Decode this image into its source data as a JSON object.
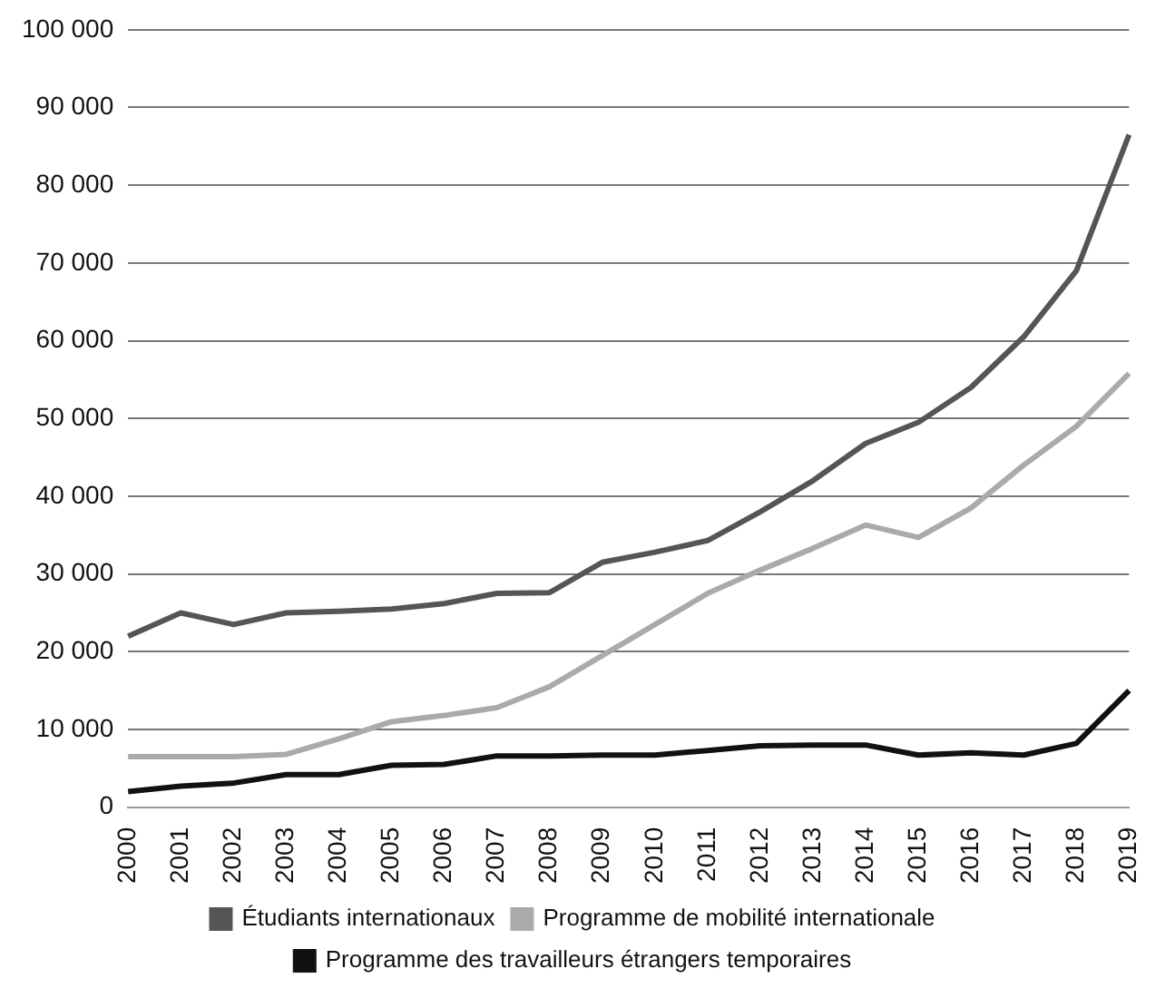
{
  "chart_data": {
    "type": "line",
    "categories": [
      "2000",
      "2001",
      "2002",
      "2003",
      "2004",
      "2005",
      "2006",
      "2007",
      "2008",
      "2009",
      "2010",
      "2011",
      "2012",
      "2013",
      "2014",
      "2015",
      "2016",
      "2017",
      "2018",
      "2019"
    ],
    "series": [
      {
        "name": "Étudiants internationaux",
        "color": "#555555",
        "values": [
          22000,
          25000,
          23500,
          25000,
          25200,
          25500,
          26200,
          27500,
          27600,
          31500,
          32800,
          34300,
          38000,
          42000,
          46800,
          49500,
          54000,
          60500,
          69000,
          86500
        ]
      },
      {
        "name": "Programme de mobilité internationale",
        "color": "#aaaaaa",
        "values": [
          6500,
          6500,
          6500,
          6800,
          8800,
          11000,
          11800,
          12800,
          15500,
          19500,
          23500,
          27500,
          30500,
          33300,
          36300,
          34700,
          38500,
          44000,
          49000,
          55800
        ]
      },
      {
        "name": "Programme des travailleurs étrangers temporaires",
        "color": "#111111",
        "values": [
          2000,
          2700,
          3100,
          4200,
          4200,
          5400,
          5500,
          6600,
          6600,
          6700,
          6700,
          7300,
          7900,
          8000,
          8000,
          6700,
          7000,
          6700,
          8200,
          15000
        ]
      }
    ],
    "ylim": [
      0,
      100000
    ],
    "yticks": [
      0,
      {
        "value": 10000,
        "label": "10 000"
      },
      {
        "value": 20000,
        "label": "20 000"
      },
      {
        "value": 30000,
        "label": "30 000"
      },
      {
        "value": 40000,
        "label": "40 000"
      },
      {
        "value": 50000,
        "label": "50 000"
      },
      {
        "value": 60000,
        "label": "60 000"
      },
      {
        "value": 70000,
        "label": "70 000"
      },
      {
        "value": 80000,
        "label": "80 000"
      },
      {
        "value": 90000,
        "label": "90 000"
      },
      {
        "value": 100000,
        "label": "100 000"
      }
    ],
    "grid": "y",
    "legend": "bottom",
    "marker": "none",
    "line_style": "solid"
  }
}
